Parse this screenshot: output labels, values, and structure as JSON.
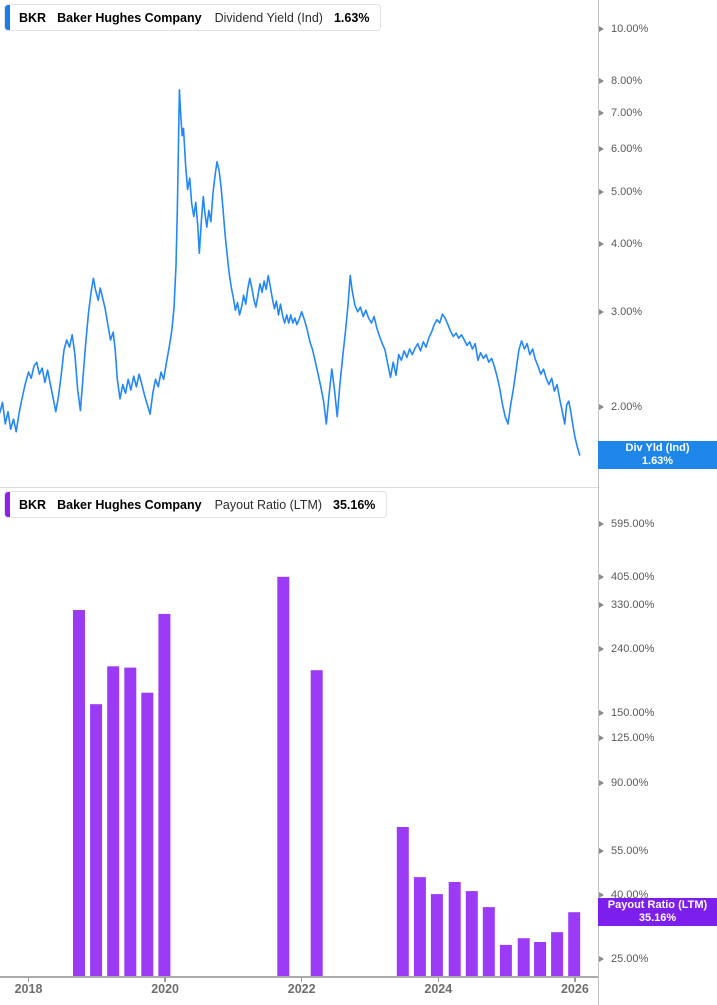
{
  "colors": {
    "line": "#2388F5",
    "bar": "#9B3BF5",
    "badge_blue": "#1E86E8",
    "badge_purple": "#7D1FEC",
    "accent_blue": "#1B7CEB",
    "accent_purple": "#8F1FF0",
    "axis_line": "#ababab",
    "y_tick_text": "#595959",
    "x_tick_text": "#6e6e6e"
  },
  "x_axis": {
    "ticks": [
      {
        "label": "2018",
        "year": 2018
      },
      {
        "label": "2020",
        "year": 2020
      },
      {
        "label": "2022",
        "year": 2022
      },
      {
        "label": "2024",
        "year": 2024
      },
      {
        "label": "2026",
        "year": 2026
      }
    ]
  },
  "chart_data": [
    {
      "type": "line",
      "name": "dividend-yield",
      "title": "BKR Baker Hughes Company Dividend Yield (Ind) 1.63%",
      "header": {
        "ticker": "BKR",
        "company": "Baker Hughes Company",
        "metric": "Dividend Yield (Ind)",
        "value": "1.63%"
      },
      "badge": {
        "line1": "Div Yld (Ind)",
        "line2": "1.63%",
        "value_num": 1.63
      },
      "y_scale": "log",
      "legend_position": "top-left",
      "grid": false,
      "y_ticks": [
        {
          "label": "10.00%",
          "value": 10
        },
        {
          "label": "8.00%",
          "value": 8
        },
        {
          "label": "7.00%",
          "value": 7
        },
        {
          "label": "6.00%",
          "value": 6
        },
        {
          "label": "5.00%",
          "value": 5
        },
        {
          "label": "4.00%",
          "value": 4
        },
        {
          "label": "3.00%",
          "value": 3
        },
        {
          "label": "2.00%",
          "value": 2
        }
      ],
      "ylim": [
        1.45,
        10.8
      ],
      "xlim": [
        2017.58,
        2026.34
      ],
      "x": [
        2017.58,
        2017.62,
        2017.66,
        2017.7,
        2017.74,
        2017.78,
        2017.82,
        2017.86,
        2017.9,
        2017.95,
        2018.0,
        2018.04,
        2018.08,
        2018.12,
        2018.16,
        2018.2,
        2018.24,
        2018.28,
        2018.32,
        2018.36,
        2018.4,
        2018.44,
        2018.48,
        2018.52,
        2018.56,
        2018.6,
        2018.64,
        2018.68,
        2018.72,
        2018.76,
        2018.8,
        2018.84,
        2018.88,
        2018.92,
        2018.95,
        2018.98,
        2019.02,
        2019.05,
        2019.08,
        2019.12,
        2019.16,
        2019.2,
        2019.24,
        2019.27,
        2019.3,
        2019.34,
        2019.38,
        2019.42,
        2019.46,
        2019.5,
        2019.54,
        2019.58,
        2019.62,
        2019.66,
        2019.7,
        2019.74,
        2019.78,
        2019.82,
        2019.86,
        2019.9,
        2019.94,
        2019.98,
        2020.02,
        2020.06,
        2020.1,
        2020.13,
        2020.16,
        2020.18,
        2020.21,
        2020.23,
        2020.25,
        2020.27,
        2020.3,
        2020.33,
        2020.36,
        2020.39,
        2020.42,
        2020.45,
        2020.48,
        2020.5,
        2020.53,
        2020.56,
        2020.58,
        2020.61,
        2020.64,
        2020.67,
        2020.7,
        2020.73,
        2020.76,
        2020.79,
        2020.82,
        2020.85,
        2020.88,
        2020.91,
        2020.94,
        2020.97,
        2021.0,
        2021.03,
        2021.06,
        2021.09,
        2021.12,
        2021.15,
        2021.18,
        2021.21,
        2021.24,
        2021.27,
        2021.3,
        2021.33,
        2021.36,
        2021.39,
        2021.42,
        2021.45,
        2021.48,
        2021.51,
        2021.54,
        2021.57,
        2021.6,
        2021.63,
        2021.66,
        2021.69,
        2021.72,
        2021.75,
        2021.78,
        2021.81,
        2021.84,
        2021.87,
        2021.9,
        2021.93,
        2021.96,
        2022.0,
        2022.04,
        2022.08,
        2022.12,
        2022.16,
        2022.2,
        2022.24,
        2022.28,
        2022.32,
        2022.36,
        2022.4,
        2022.44,
        2022.48,
        2022.52,
        2022.56,
        2022.6,
        2022.64,
        2022.68,
        2022.71,
        2022.74,
        2022.78,
        2022.82,
        2022.86,
        2022.9,
        2022.94,
        2022.98,
        2023.02,
        2023.06,
        2023.1,
        2023.14,
        2023.18,
        2023.22,
        2023.26,
        2023.3,
        2023.34,
        2023.38,
        2023.42,
        2023.46,
        2023.5,
        2023.54,
        2023.58,
        2023.62,
        2023.66,
        2023.7,
        2023.74,
        2023.78,
        2023.82,
        2023.86,
        2023.9,
        2023.94,
        2023.98,
        2024.02,
        2024.06,
        2024.1,
        2024.14,
        2024.18,
        2024.22,
        2024.26,
        2024.3,
        2024.34,
        2024.38,
        2024.42,
        2024.46,
        2024.5,
        2024.54,
        2024.58,
        2024.62,
        2024.66,
        2024.7,
        2024.74,
        2024.78,
        2024.82,
        2024.86,
        2024.9,
        2024.94,
        2024.98,
        2025.02,
        2025.06,
        2025.1,
        2025.14,
        2025.18,
        2025.22,
        2025.26,
        2025.3,
        2025.34,
        2025.38,
        2025.42,
        2025.46,
        2025.5,
        2025.54,
        2025.58,
        2025.62,
        2025.66,
        2025.7,
        2025.74,
        2025.78,
        2025.82,
        2025.85,
        2025.88,
        2025.91,
        2025.94,
        2025.97,
        2026.0,
        2026.04,
        2026.07
      ],
      "y": [
        1.95,
        2.04,
        1.86,
        1.96,
        1.82,
        1.9,
        1.8,
        1.94,
        2.06,
        2.2,
        2.32,
        2.26,
        2.38,
        2.42,
        2.3,
        2.36,
        2.22,
        2.34,
        2.2,
        2.08,
        1.96,
        2.1,
        2.3,
        2.55,
        2.66,
        2.58,
        2.72,
        2.5,
        2.15,
        1.97,
        2.28,
        2.65,
        3.0,
        3.28,
        3.46,
        3.3,
        3.15,
        3.32,
        3.2,
        3.05,
        2.85,
        2.66,
        2.75,
        2.55,
        2.25,
        2.07,
        2.2,
        2.12,
        2.25,
        2.15,
        2.28,
        2.18,
        2.3,
        2.2,
        2.1,
        2.02,
        1.94,
        2.12,
        2.25,
        2.18,
        2.32,
        2.25,
        2.42,
        2.58,
        2.78,
        3.05,
        3.65,
        4.7,
        7.72,
        6.9,
        6.35,
        6.55,
        5.6,
        5.05,
        5.3,
        4.75,
        4.5,
        4.78,
        4.3,
        3.85,
        4.4,
        4.9,
        4.6,
        4.3,
        4.62,
        4.4,
        4.95,
        5.35,
        5.68,
        5.48,
        5.1,
        4.6,
        4.15,
        3.8,
        3.52,
        3.32,
        3.18,
        3.02,
        3.12,
        2.96,
        3.06,
        3.22,
        3.1,
        3.3,
        3.46,
        3.32,
        3.16,
        3.06,
        3.22,
        3.38,
        3.26,
        3.42,
        3.3,
        3.5,
        3.34,
        3.18,
        3.04,
        3.14,
        2.96,
        3.1,
        2.95,
        2.86,
        2.96,
        2.86,
        2.96,
        2.86,
        2.92,
        2.84,
        2.9,
        3.0,
        2.9,
        2.78,
        2.64,
        2.55,
        2.42,
        2.3,
        2.18,
        2.05,
        1.86,
        2.1,
        2.35,
        2.15,
        1.92,
        2.2,
        2.48,
        2.75,
        3.1,
        3.5,
        3.28,
        3.08,
        3.0,
        3.06,
        2.94,
        3.02,
        2.92,
        2.86,
        2.94,
        2.8,
        2.7,
        2.62,
        2.55,
        2.4,
        2.27,
        2.42,
        2.29,
        2.5,
        2.44,
        2.54,
        2.47,
        2.56,
        2.5,
        2.57,
        2.62,
        2.54,
        2.64,
        2.58,
        2.68,
        2.75,
        2.84,
        2.9,
        2.86,
        2.97,
        2.92,
        2.84,
        2.76,
        2.7,
        2.74,
        2.68,
        2.72,
        2.66,
        2.6,
        2.64,
        2.56,
        2.62,
        2.44,
        2.52,
        2.46,
        2.5,
        2.42,
        2.46,
        2.38,
        2.28,
        2.16,
        2.02,
        1.92,
        1.86,
        2.02,
        2.16,
        2.35,
        2.55,
        2.65,
        2.56,
        2.62,
        2.5,
        2.56,
        2.45,
        2.38,
        2.3,
        2.35,
        2.26,
        2.2,
        2.26,
        2.14,
        2.2,
        2.06,
        1.95,
        1.86,
        2.02,
        2.05,
        1.96,
        1.85,
        1.76,
        1.68,
        1.63
      ]
    },
    {
      "type": "bar",
      "name": "payout-ratio",
      "title": "BKR Baker Hughes Company Payout Ratio (LTM) 35.16%",
      "header": {
        "ticker": "BKR",
        "company": "Baker Hughes Company",
        "metric": "Payout Ratio (LTM)",
        "value": "35.16%"
      },
      "badge": {
        "line1": "Payout Ratio (LTM)",
        "line2": "35.16%",
        "value_num": 35.16
      },
      "y_scale": "log",
      "legend_position": "top-left",
      "grid": false,
      "y_ticks": [
        {
          "label": "595.00%",
          "value": 595
        },
        {
          "label": "405.00%",
          "value": 405
        },
        {
          "label": "330.00%",
          "value": 330
        },
        {
          "label": "240.00%",
          "value": 240
        },
        {
          "label": "150.00%",
          "value": 150
        },
        {
          "label": "125.00%",
          "value": 125
        },
        {
          "label": "90.00%",
          "value": 90
        },
        {
          "label": "55.00%",
          "value": 55
        },
        {
          "label": "40.00%",
          "value": 40
        },
        {
          "label": "25.00%",
          "value": 25
        }
      ],
      "ylim": [
        22,
        700
      ],
      "xlim": [
        2017.58,
        2026.34
      ],
      "x": [
        2018.74,
        2018.99,
        2019.24,
        2019.49,
        2019.74,
        2019.99,
        2021.73,
        2022.22,
        2023.48,
        2023.73,
        2023.98,
        2024.24,
        2024.49,
        2024.74,
        2024.99,
        2025.25,
        2025.49,
        2025.74,
        2025.99
      ],
      "values": [
        318,
        160,
        211,
        209,
        174,
        309,
        405,
        205,
        65.4,
        45.4,
        40.1,
        43.8,
        41.0,
        36.5,
        27.7,
        29.1,
        28.3,
        30.4,
        35.16
      ]
    }
  ]
}
